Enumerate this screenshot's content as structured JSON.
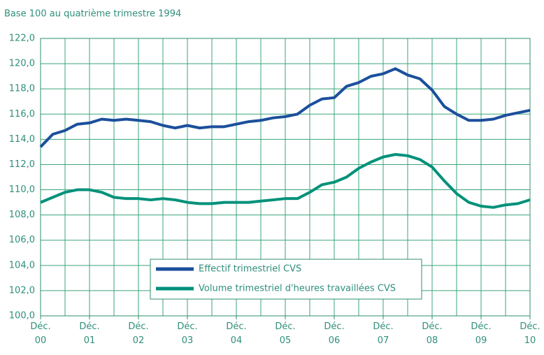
{
  "chart_data": {
    "type": "line",
    "subtitle": "Base 100 au quatrième trimestre 1994",
    "categories": [
      "Déc. 00",
      null,
      null,
      null,
      "Déc. 01",
      null,
      null,
      null,
      "Déc. 02",
      null,
      null,
      null,
      "Déc. 03",
      null,
      null,
      null,
      "Déc. 04",
      null,
      null,
      null,
      "Déc. 05",
      null,
      null,
      null,
      "Déc. 06",
      null,
      null,
      null,
      "Déc. 07",
      null,
      null,
      null,
      "Déc. 08",
      null,
      null,
      null,
      "Déc. 09",
      null,
      null,
      null,
      "Déc. 10"
    ],
    "series": [
      {
        "name": "Effectif trimestriel CVS",
        "color": "#1b4f9c",
        "values": [
          113.4,
          114.4,
          114.7,
          115.2,
          115.3,
          115.6,
          115.5,
          115.6,
          115.5,
          115.4,
          115.1,
          114.9,
          115.1,
          114.9,
          115.0,
          115.0,
          115.2,
          115.4,
          115.5,
          115.7,
          115.8,
          116.0,
          116.7,
          117.2,
          117.3,
          118.2,
          118.5,
          119.0,
          119.2,
          119.6,
          119.1,
          118.8,
          117.9,
          116.6,
          116.0,
          115.5,
          115.5,
          115.6,
          115.9,
          116.1,
          116.3
        ]
      },
      {
        "name": "Volume trimestriel d'heures travaillées CVS",
        "color": "#00917a",
        "values": [
          109.0,
          109.4,
          109.8,
          110.0,
          110.0,
          109.8,
          109.4,
          109.3,
          109.3,
          109.2,
          109.3,
          109.2,
          109.0,
          108.9,
          108.9,
          109.0,
          109.0,
          109.0,
          109.1,
          109.2,
          109.3,
          109.3,
          109.8,
          110.4,
          110.6,
          111.0,
          111.7,
          112.2,
          112.6,
          112.8,
          112.7,
          112.4,
          111.8,
          110.7,
          109.7,
          109.0,
          108.7,
          108.6,
          108.8,
          108.9,
          109.2
        ]
      }
    ],
    "ylim": [
      100,
      122
    ],
    "yticks": [
      {
        "value": 100,
        "label": "100,0"
      },
      {
        "value": 102,
        "label": "102,0"
      },
      {
        "value": 104,
        "label": "104,0"
      },
      {
        "value": 106,
        "label": "106,0"
      },
      {
        "value": 108,
        "label": "108,0"
      },
      {
        "value": 110,
        "label": "110,0"
      },
      {
        "value": 112,
        "label": "112,0"
      },
      {
        "value": 114,
        "label": "114,0"
      },
      {
        "value": 116,
        "label": "116,0"
      },
      {
        "value": 118,
        "label": "118,0"
      },
      {
        "value": 120,
        "label": "120,0"
      },
      {
        "value": 122,
        "label": "122,0"
      }
    ],
    "grid": true
  }
}
